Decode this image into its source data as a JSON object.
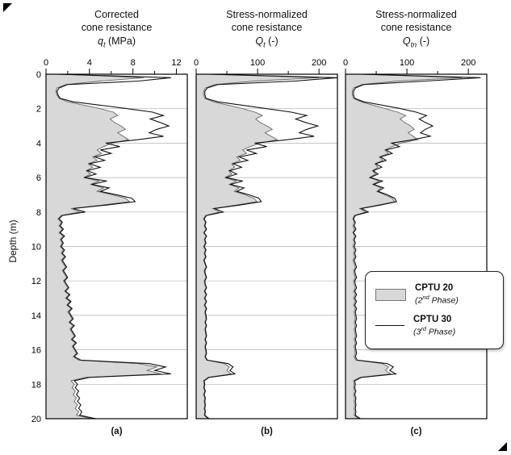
{
  "figure": {
    "y_axis_title": "Depth (m)",
    "panel_letters": [
      "(a)",
      "(b)",
      "(c)"
    ],
    "legend": {
      "entries": [
        {
          "name": "CPTU 20",
          "phase_open": "(2",
          "phase_ord": "nd",
          "phase_rest": " Phase)",
          "swatch": "gray-area"
        },
        {
          "name": "CPTU 30",
          "phase_open": "(3",
          "phase_ord": "rd",
          "phase_rest": " Phase)",
          "swatch": "black-line"
        }
      ]
    },
    "colors": {
      "area_fill": "#d8d8d8",
      "area_edge": "#666666",
      "line": "#111111",
      "grid": "#b0b0b0"
    }
  },
  "depths": [
    0,
    0.2,
    0.4,
    0.6,
    0.8,
    1,
    1.2,
    1.4,
    1.6,
    1.8,
    2,
    2.2,
    2.4,
    2.6,
    2.8,
    3,
    3.2,
    3.4,
    3.6,
    3.8,
    4,
    4.2,
    4.4,
    4.6,
    4.8,
    5,
    5.2,
    5.4,
    5.6,
    5.8,
    6,
    6.2,
    6.4,
    6.6,
    6.8,
    7,
    7.2,
    7.4,
    7.6,
    7.8,
    8,
    8.2,
    8.4,
    8.6,
    8.8,
    9,
    9.2,
    9.4,
    9.6,
    9.8,
    10,
    10.2,
    10.4,
    10.6,
    10.8,
    11,
    11.2,
    11.4,
    11.6,
    11.8,
    12,
    12.2,
    12.4,
    12.6,
    12.8,
    13,
    13.2,
    13.4,
    13.6,
    13.8,
    14,
    14.2,
    14.4,
    14.6,
    14.8,
    15,
    15.2,
    15.4,
    15.6,
    15.8,
    16,
    16.2,
    16.4,
    16.6,
    16.8,
    17,
    17.2,
    17.4,
    17.6,
    17.8,
    18,
    18.2,
    18.4,
    18.6,
    18.8,
    19,
    19.2,
    19.4,
    19.6,
    19.8,
    20
  ],
  "chart_data": [
    {
      "type": "line",
      "panel": "a",
      "title_lines": [
        "Corrected",
        "cone resistance"
      ],
      "axis_symbol": {
        "sym": "q",
        "sub": "t",
        "unit": " (MPa)"
      },
      "xlabel": "qt (MPa)",
      "ylabel": "Depth (m)",
      "xlim": [
        0,
        13
      ],
      "ylim": [
        0,
        20
      ],
      "x_major_ticks": [
        0,
        4,
        8,
        12
      ],
      "x_minor_ticks": [
        2,
        6,
        10
      ],
      "y_ticks": [
        0,
        2,
        4,
        6,
        8,
        10,
        12,
        14,
        16,
        18,
        20
      ],
      "grid": true,
      "series": [
        {
          "name": "CPTU 20 (2nd Phase)",
          "style": "gray-area",
          "values": [
            1.5,
            9.0,
            5.0,
            1.8,
            1.0,
            0.9,
            1.0,
            1.2,
            2.0,
            3.5,
            5.0,
            6.2,
            6.6,
            5.9,
            6.3,
            6.9,
            7.3,
            6.6,
            7.1,
            7.6,
            6.1,
            5.3,
            4.7,
            5.1,
            4.3,
            4.7,
            3.9,
            4.3,
            3.7,
            4.1,
            3.5,
            4.9,
            4.1,
            5.3,
            4.7,
            6.1,
            7.3,
            7.7,
            5.1,
            2.3,
            3.1,
            1.4,
            1.1,
            1.4,
            1.2,
            1.5,
            1.2,
            1.6,
            1.3,
            1.5,
            1.3,
            1.6,
            1.4,
            1.7,
            1.4,
            1.6,
            1.8,
            1.5,
            1.7,
            1.9,
            1.6,
            1.8,
            2.0,
            1.7,
            2.1,
            1.8,
            2.2,
            1.9,
            2.3,
            2.0,
            2.2,
            2.4,
            2.1,
            2.5,
            2.2,
            2.4,
            2.6,
            2.3,
            2.7,
            2.4,
            2.6,
            2.8,
            2.5,
            3.0,
            8.5,
            10.2,
            9.3,
            10.6,
            3.6,
            2.3,
            2.6,
            2.4,
            2.7,
            2.5,
            2.8,
            2.6,
            2.9,
            2.7,
            3.0,
            2.8,
            4.2
          ]
        },
        {
          "name": "CPTU 30 (3rd Phase)",
          "style": "black-line",
          "values": [
            1.0,
            11.5,
            8.5,
            2.0,
            1.2,
            1.0,
            1.1,
            1.3,
            2.5,
            5.0,
            7.5,
            9.8,
            10.8,
            9.6,
            10.5,
            11.3,
            10.2,
            9.5,
            10.8,
            8.5,
            5.5,
            6.8,
            5.0,
            6.0,
            4.5,
            5.4,
            4.0,
            5.0,
            3.8,
            4.6,
            3.5,
            5.6,
            4.2,
            5.8,
            5.0,
            6.5,
            7.9,
            8.2,
            5.5,
            2.5,
            3.6,
            1.5,
            1.2,
            1.5,
            1.3,
            1.6,
            1.3,
            1.7,
            1.4,
            1.6,
            1.4,
            1.7,
            1.5,
            1.8,
            1.5,
            1.7,
            1.9,
            1.6,
            1.8,
            2.0,
            1.7,
            1.9,
            2.1,
            1.8,
            2.2,
            1.9,
            2.3,
            2.0,
            2.4,
            2.1,
            2.3,
            2.5,
            2.2,
            2.6,
            2.3,
            2.5,
            2.7,
            2.4,
            2.8,
            2.5,
            2.7,
            2.9,
            2.6,
            3.2,
            9.5,
            11.0,
            10.0,
            11.5,
            4.0,
            2.6,
            2.9,
            2.7,
            3.0,
            2.8,
            3.1,
            2.9,
            3.2,
            3.0,
            3.3,
            3.1,
            4.6
          ]
        }
      ]
    },
    {
      "type": "line",
      "panel": "b",
      "title_lines": [
        "Stress-normalized",
        "cone resistance"
      ],
      "axis_symbol": {
        "sym": "Q",
        "sub": "t",
        "unit": " (-)"
      },
      "xlabel": "Qt (-)",
      "ylabel": "Depth (m)",
      "xlim": [
        0,
        230
      ],
      "ylim": [
        0,
        20
      ],
      "x_major_ticks": [
        0,
        100,
        200
      ],
      "x_minor_ticks": [
        50,
        150
      ],
      "y_ticks": [
        0,
        2,
        4,
        6,
        8,
        10,
        12,
        14,
        16,
        18,
        20
      ],
      "grid": true,
      "series": [
        {
          "name": "CPTU 20 (2nd Phase)",
          "style": "gray-area",
          "values": [
            25,
            200,
            95,
            30,
            15,
            12,
            12,
            14,
            28,
            52,
            76,
            96,
            108,
            97,
            104,
            115,
            124,
            112,
            122,
            132,
            104,
            88,
            76,
            82,
            66,
            72,
            58,
            63,
            53,
            58,
            47,
            66,
            54,
            70,
            62,
            80,
            94,
            99,
            64,
            27,
            38,
            15,
            12,
            15,
            13,
            16,
            12,
            16,
            13,
            15,
            12,
            15,
            13,
            15,
            12,
            14,
            16,
            13,
            14,
            16,
            13,
            14,
            16,
            13,
            16,
            13,
            16,
            13,
            16,
            14,
            15,
            16,
            14,
            16,
            14,
            15,
            16,
            14,
            16,
            14,
            15,
            16,
            14,
            17,
            46,
            54,
            50,
            57,
            19,
            12,
            13,
            12,
            14,
            12,
            14,
            13,
            14,
            13,
            14,
            13,
            19
          ]
        },
        {
          "name": "CPTU 30 (3rd Phase)",
          "style": "black-line",
          "values": [
            20,
            240,
            160,
            35,
            18,
            14,
            14,
            16,
            35,
            75,
            115,
            155,
            180,
            162,
            178,
            198,
            180,
            168,
            192,
            150,
            95,
            115,
            82,
            98,
            70,
            84,
            60,
            74,
            55,
            66,
            48,
            76,
            56,
            78,
            66,
            86,
            102,
            106,
            70,
            30,
            44,
            17,
            13,
            16,
            14,
            17,
            13,
            17,
            14,
            16,
            13,
            16,
            14,
            16,
            13,
            15,
            17,
            14,
            15,
            17,
            14,
            15,
            17,
            14,
            17,
            14,
            17,
            14,
            17,
            15,
            16,
            17,
            15,
            17,
            15,
            16,
            17,
            15,
            17,
            15,
            16,
            17,
            15,
            18,
            52,
            60,
            55,
            63,
            21,
            13,
            14,
            13,
            15,
            13,
            15,
            14,
            15,
            14,
            15,
            14,
            21
          ]
        }
      ]
    },
    {
      "type": "line",
      "panel": "c",
      "title_lines": [
        "Stress-normalized",
        "cone resistance"
      ],
      "axis_symbol": {
        "sym": "Q",
        "sub": "tn",
        "unit": " (-)"
      },
      "xlabel": "Qtn (-)",
      "ylabel": "Depth (m)",
      "xlim": [
        0,
        230
      ],
      "ylim": [
        0,
        20
      ],
      "x_major_ticks": [
        0,
        100,
        200
      ],
      "x_minor_ticks": [
        50,
        150
      ],
      "y_ticks": [
        0,
        2,
        4,
        6,
        8,
        10,
        12,
        14,
        16,
        18,
        20
      ],
      "grid": true,
      "series": [
        {
          "name": "CPTU 20 (2nd Phase)",
          "style": "gray-area",
          "values": [
            30,
            190,
            85,
            26,
            13,
            11,
            11,
            13,
            25,
            45,
            65,
            85,
            98,
            89,
            96,
            106,
            112,
            102,
            110,
            118,
            90,
            76,
            64,
            70,
            55,
            61,
            48,
            53,
            44,
            49,
            39,
            55,
            44,
            58,
            51,
            64,
            76,
            80,
            52,
            23,
            33,
            14,
            12,
            14,
            12,
            15,
            12,
            15,
            13,
            14,
            12,
            15,
            13,
            15,
            12,
            14,
            16,
            13,
            14,
            16,
            13,
            14,
            16,
            13,
            16,
            13,
            16,
            13,
            16,
            14,
            15,
            16,
            14,
            16,
            14,
            15,
            16,
            14,
            16,
            14,
            15,
            16,
            14,
            17,
            60,
            70,
            65,
            74,
            23,
            13,
            14,
            13,
            15,
            13,
            15,
            14,
            15,
            14,
            15,
            14,
            21
          ]
        },
        {
          "name": "CPTU 30 (3rd Phase)",
          "style": "black-line",
          "values": [
            25,
            220,
            130,
            30,
            16,
            13,
            13,
            15,
            30,
            60,
            90,
            115,
            132,
            120,
            130,
            142,
            130,
            122,
            138,
            110,
            75,
            88,
            66,
            76,
            57,
            66,
            49,
            59,
            45,
            53,
            40,
            60,
            46,
            62,
            53,
            68,
            80,
            83,
            56,
            26,
            37,
            16,
            13,
            16,
            14,
            17,
            13,
            17,
            14,
            16,
            14,
            17,
            15,
            17,
            14,
            16,
            18,
            15,
            16,
            18,
            15,
            16,
            18,
            15,
            18,
            15,
            18,
            15,
            18,
            16,
            17,
            18,
            16,
            18,
            16,
            17,
            18,
            16,
            18,
            16,
            17,
            18,
            16,
            19,
            68,
            78,
            72,
            82,
            26,
            15,
            16,
            15,
            17,
            15,
            17,
            16,
            17,
            16,
            17,
            16,
            24
          ]
        }
      ]
    }
  ]
}
